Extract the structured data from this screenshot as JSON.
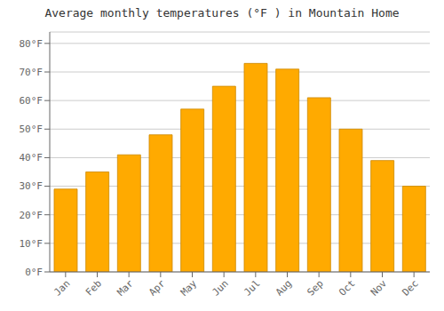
{
  "chart_data": {
    "type": "bar",
    "title": "Average monthly temperatures (°F ) in Mountain Home",
    "categories": [
      "Jan",
      "Feb",
      "Mar",
      "Apr",
      "May",
      "Jun",
      "Jul",
      "Aug",
      "Sep",
      "Oct",
      "Nov",
      "Dec"
    ],
    "values": [
      29,
      35,
      41,
      48,
      57,
      65,
      73,
      71,
      61,
      50,
      39,
      30
    ],
    "color": "#FFAA00",
    "ylim": [
      0,
      84
    ],
    "yticks": [
      {
        "value": 0,
        "label": "0°F"
      },
      {
        "value": 10,
        "label": "10°F"
      },
      {
        "value": 20,
        "label": "20°F"
      },
      {
        "value": 30,
        "label": "30°F"
      },
      {
        "value": 40,
        "label": "40°F"
      },
      {
        "value": 50,
        "label": "50°F"
      },
      {
        "value": 60,
        "label": "60°F"
      },
      {
        "value": 70,
        "label": "70°F"
      },
      {
        "value": 80,
        "label": "80°F"
      }
    ],
    "grid": true
  }
}
